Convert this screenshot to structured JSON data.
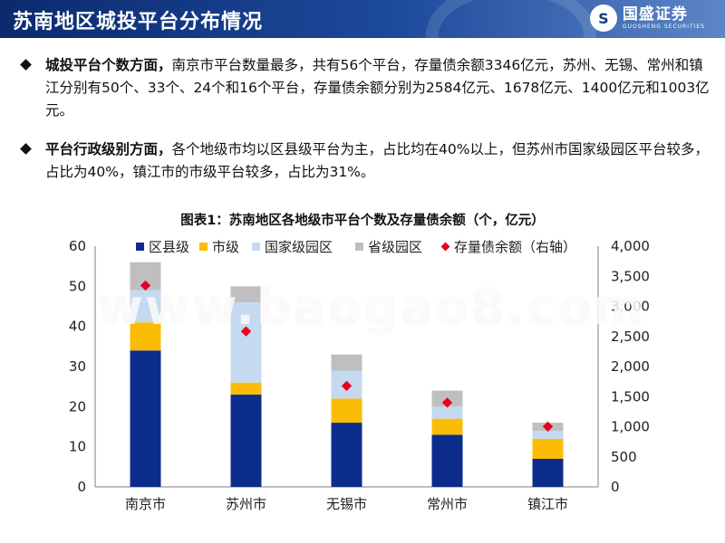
{
  "header": {
    "title": "苏南地区城投平台分布情况",
    "logo_cn": "国盛证券",
    "logo_en": "GUOSHENG SECURITIES",
    "logo_mark": "S"
  },
  "bullets": [
    {
      "bold": "城投平台个数方面，",
      "text": "南京市平台数量最多，共有56个平台，存量债余额3346亿元，苏州、无锡、常州和镇江分别有50个、33个、24个和16个平台，存量债余额分别为2584亿元、1678亿元、1400亿元和1003亿元。"
    },
    {
      "bold": "平台行政级别方面，",
      "text": "各个地级市均以区县级平台为主，占比均在40%以上，但苏州市国家级园区平台较多，占比为40%，镇江市的市级平台较多，占比为31%。"
    }
  ],
  "watermark": "www.baogao8.com",
  "chart_data": {
    "type": "bar",
    "stacked": true,
    "title": "图表1：苏南地区各地级市平台个数及存量债余额（个，亿元）",
    "categories": [
      "南京市",
      "苏州市",
      "无锡市",
      "常州市",
      "镇江市"
    ],
    "series": [
      {
        "name": "区县级",
        "color": "#0d2d8c",
        "values": [
          34,
          23,
          16,
          13,
          7
        ]
      },
      {
        "name": "市级",
        "color": "#fbbc05",
        "values": [
          7,
          3,
          6,
          4,
          5
        ]
      },
      {
        "name": "国家级园区",
        "color": "#c5d9f1",
        "values": [
          8,
          20,
          7,
          3,
          2
        ]
      },
      {
        "name": "省级园区",
        "color": "#bfbfbf",
        "values": [
          7,
          4,
          4,
          4,
          2
        ]
      }
    ],
    "secondary": {
      "name": "存量债余额（右轴）",
      "type": "scatter",
      "marker": "diamond",
      "color": "#e8001c",
      "values": [
        3346,
        2584,
        1678,
        1400,
        1003
      ]
    },
    "ylim": [
      0,
      60
    ],
    "yticks": [
      0,
      10,
      20,
      30,
      40,
      50,
      60
    ],
    "y2lim": [
      0,
      4000
    ],
    "y2ticks": [
      "0",
      "500",
      "1,000",
      "1,500",
      "2,000",
      "2,500",
      "3,000",
      "3,500",
      "4,000"
    ],
    "legend": "top"
  }
}
